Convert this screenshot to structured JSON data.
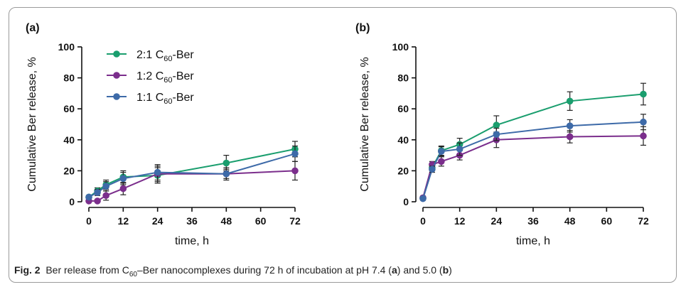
{
  "chart_data": [
    {
      "type": "line",
      "panel_label": "(a)",
      "xlabel": "time, h",
      "ylabel": "Cumulative Ber release, %",
      "xlim": [
        0,
        72
      ],
      "ylim": [
        0,
        100
      ],
      "xticks": [
        0,
        12,
        24,
        36,
        48,
        60,
        72
      ],
      "yticks": [
        0,
        20,
        40,
        60,
        80,
        100
      ],
      "legend_placement": "top-left",
      "series": [
        {
          "name": "2:1 C60-Ber",
          "legend_main": "2:1 C",
          "legend_sub": "60",
          "legend_tail": "-Ber",
          "color": "#1a9e6e",
          "x": [
            0,
            3,
            6,
            12,
            24,
            48,
            72
          ],
          "y": [
            3,
            7,
            11,
            16,
            17,
            25,
            34
          ],
          "err": [
            1,
            2,
            3,
            4,
            5,
            5,
            5
          ]
        },
        {
          "name": "1:2 C60-Ber",
          "legend_main": "1:2 C",
          "legend_sub": "60",
          "legend_tail": "-Ber",
          "color": "#7b2e8c",
          "x": [
            0,
            3,
            6,
            12,
            24,
            48,
            72
          ],
          "y": [
            0.5,
            0.5,
            4,
            8.5,
            18,
            18,
            20
          ],
          "err": [
            1,
            1,
            3,
            4,
            5,
            4,
            6
          ]
        },
        {
          "name": "1:1 C60-Ber",
          "legend_main": "1:1 C",
          "legend_sub": "60",
          "legend_tail": "-Ber",
          "color": "#3d6aa8",
          "x": [
            0,
            3,
            6,
            12,
            24,
            48,
            72
          ],
          "y": [
            3,
            6,
            10,
            15,
            19,
            18,
            31
          ],
          "err": [
            1,
            2,
            3,
            4,
            5,
            3,
            5
          ]
        }
      ]
    },
    {
      "type": "line",
      "panel_label": "(b)",
      "xlabel": "time, h",
      "ylabel": "Cumulative Ber release, %",
      "xlim": [
        0,
        72
      ],
      "ylim": [
        0,
        100
      ],
      "xticks": [
        0,
        12,
        24,
        36,
        48,
        60,
        72
      ],
      "yticks": [
        0,
        20,
        40,
        60,
        80,
        100
      ],
      "series": [
        {
          "name": "2:1 C60-Ber",
          "color": "#1a9e6e",
          "x": [
            0,
            3,
            6,
            12,
            24,
            48,
            72
          ],
          "y": [
            2.5,
            22,
            33,
            37,
            49.5,
            65,
            69.5
          ],
          "err": [
            1,
            2,
            3,
            4,
            6,
            6,
            7
          ]
        },
        {
          "name": "1:2 C60-Ber",
          "color": "#7b2e8c",
          "x": [
            0,
            3,
            6,
            12,
            24,
            48,
            72
          ],
          "y": [
            2.5,
            24,
            26,
            30,
            40,
            42,
            42.5
          ],
          "err": [
            1,
            2,
            3,
            3,
            5,
            4,
            6
          ]
        },
        {
          "name": "1:1 C60-Ber",
          "color": "#3d6aa8",
          "x": [
            0,
            3,
            6,
            12,
            24,
            48,
            72
          ],
          "y": [
            2,
            21,
            32.5,
            34,
            43.5,
            49,
            51.5
          ],
          "err": [
            1,
            2,
            3,
            4,
            4,
            4,
            5
          ]
        }
      ]
    }
  ],
  "caption": {
    "label": "Fig. 2",
    "text_before_sub": "Ber release from C",
    "sub": "60",
    "text_after_sub": "–Ber nanocomplexes during 72 h of incubation at pH 7.4 (",
    "panel_a": "a",
    "text_between": ") and 5.0 (",
    "panel_b": "b",
    "text_end": ")"
  }
}
